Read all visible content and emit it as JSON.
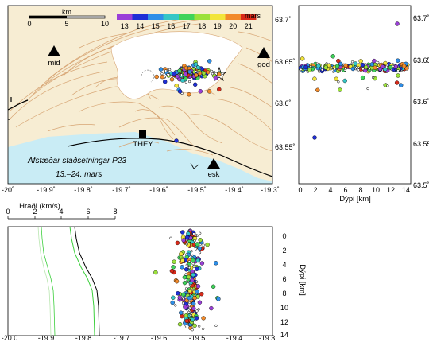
{
  "map": {
    "title": "Afstæðar staðsetningar P23",
    "date_range": "13.–24. mars",
    "scale_bar": {
      "unit": "km",
      "ticks": [
        "0",
        "5",
        "10"
      ]
    },
    "color_legend": {
      "unit": "mars",
      "days": [
        "13",
        "14",
        "15",
        "16",
        "17",
        "18",
        "19",
        "20",
        "21"
      ],
      "colors": [
        "#9a3fd8",
        "#1f2fd6",
        "#2f8fe8",
        "#34c6c6",
        "#3fd35a",
        "#9be13a",
        "#f2e53a",
        "#f28a2a",
        "#d92a1a"
      ]
    },
    "stations": [
      "mid",
      "god",
      "esk"
    ],
    "station_THEY": "THEY",
    "lon_ticks": [
      "-20˚",
      "-19.9˚",
      "-19.8˚",
      "-19.7˚",
      "-19.6˚",
      "-19.5˚",
      "-19.4˚",
      "-19.3˚"
    ],
    "lat_ticks": [
      "63.55˚",
      "63.6˚",
      "63.65˚",
      "63.7˚"
    ]
  },
  "depth_lat": {
    "xlabel": "Dýpi [km]",
    "x_ticks": [
      "0",
      "2",
      "4",
      "6",
      "8",
      "10",
      "12",
      "14"
    ],
    "y_ticks": [
      "63.5˚",
      "63.55˚",
      "63.6˚",
      "63.65˚",
      "63.7˚"
    ]
  },
  "lon_depth": {
    "ylabel": "Dýpi [km]",
    "velocity_label": "Hraði (km/s)",
    "velocity_ticks": [
      "0",
      "2",
      "4",
      "6",
      "8"
    ],
    "lon_ticks": [
      "-20.0",
      "-19.9",
      "-19.8",
      "-19.7",
      "-19.6",
      "-19.5",
      "-19.4",
      "-19.3"
    ],
    "depth_ticks": [
      "0",
      "2",
      "4",
      "6",
      "8",
      "10",
      "12",
      "14"
    ]
  }
}
